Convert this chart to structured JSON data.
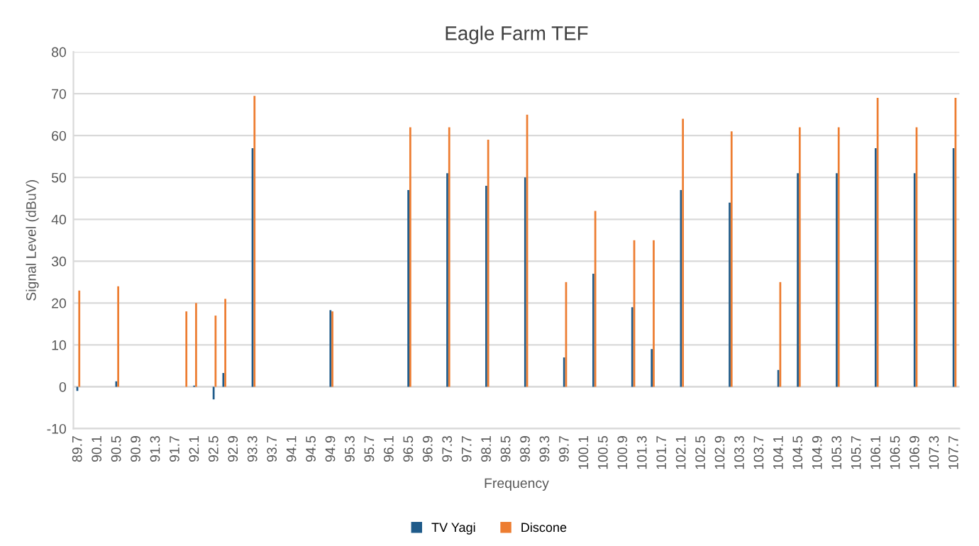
{
  "chart_data": {
    "type": "bar",
    "title": "Eagle Farm TEF",
    "xlabel": "Frequency",
    "ylabel": "Signal Level (dBuV)",
    "categories": [
      "89.7",
      null,
      null,
      null,
      "90.1",
      null,
      null,
      null,
      "90.5",
      null,
      null,
      null,
      "90.9",
      null,
      null,
      null,
      "91.3",
      null,
      null,
      null,
      "91.7",
      null,
      null,
      null,
      "92.1",
      null,
      null,
      null,
      "92.5",
      null,
      null,
      null,
      "92.9",
      null,
      null,
      null,
      "93.3",
      null,
      null,
      null,
      "93.7",
      null,
      null,
      null,
      "94.1",
      null,
      null,
      null,
      "94.5",
      null,
      null,
      null,
      "94.9",
      null,
      null,
      null,
      "95.3",
      null,
      null,
      null,
      "95.7",
      null,
      null,
      null,
      "96.1",
      null,
      null,
      null,
      "96.5",
      null,
      null,
      null,
      "96.9",
      null,
      null,
      null,
      "97.3",
      null,
      null,
      null,
      "97.7",
      null,
      null,
      null,
      "98.1",
      null,
      null,
      null,
      "98.5",
      null,
      null,
      null,
      "98.9",
      null,
      null,
      null,
      "99.3",
      null,
      null,
      null,
      "99.7",
      null,
      null,
      null,
      "100.1",
      null,
      null,
      null,
      "100.5",
      null,
      null,
      null,
      "100.9",
      null,
      null,
      null,
      "101.3",
      null,
      null,
      null,
      "101.7",
      null,
      null,
      null,
      "102.1",
      null,
      null,
      null,
      "102.5",
      null,
      null,
      null,
      "102.9",
      null,
      null,
      null,
      "103.3",
      null,
      null,
      null,
      "103.7",
      null,
      null,
      null,
      "104.1",
      null,
      null,
      null,
      "104.5",
      null,
      null,
      null,
      "104.9",
      null,
      null,
      null,
      "105.3",
      null,
      null,
      null,
      "105.7",
      null,
      null,
      null,
      "106.1",
      null,
      null,
      null,
      "106.5",
      null,
      null,
      null,
      "106.9",
      null,
      null,
      null,
      "107.3",
      null,
      null,
      null,
      "107.7"
    ],
    "series": [
      {
        "name": "TV Yagi",
        "color": "#1f5b8a",
        "values": [
          -1,
          null,
          null,
          null,
          null,
          null,
          null,
          null,
          1.3,
          null,
          null,
          null,
          null,
          null,
          null,
          null,
          null,
          null,
          null,
          null,
          null,
          null,
          null,
          null,
          0.3,
          null,
          null,
          null,
          -3,
          null,
          3.3,
          null,
          null,
          null,
          null,
          null,
          57,
          null,
          null,
          null,
          null,
          null,
          null,
          null,
          null,
          null,
          null,
          null,
          null,
          null,
          null,
          null,
          18.3,
          null,
          null,
          null,
          null,
          null,
          null,
          null,
          null,
          null,
          null,
          null,
          null,
          null,
          null,
          null,
          47,
          null,
          null,
          null,
          null,
          null,
          null,
          null,
          51,
          null,
          null,
          null,
          null,
          null,
          null,
          null,
          48,
          null,
          null,
          null,
          null,
          null,
          null,
          null,
          50,
          null,
          null,
          null,
          null,
          null,
          null,
          null,
          7,
          null,
          null,
          null,
          null,
          null,
          27,
          null,
          null,
          null,
          null,
          null,
          null,
          null,
          19,
          null,
          null,
          null,
          9,
          null,
          null,
          null,
          null,
          null,
          47,
          null,
          null,
          null,
          null,
          null,
          null,
          null,
          null,
          null,
          44,
          null,
          null,
          null,
          null,
          null,
          null,
          null,
          null,
          null,
          4,
          null,
          null,
          null,
          51,
          null,
          null,
          null,
          null,
          null,
          null,
          null,
          51,
          null,
          null,
          null,
          null,
          null,
          null,
          null,
          57,
          null,
          null,
          null,
          null,
          null,
          null,
          null,
          51,
          null,
          null,
          null,
          null,
          null,
          null,
          null,
          57
        ]
      },
      {
        "name": "Discone",
        "color": "#ed7d31",
        "values": [
          23,
          null,
          null,
          null,
          null,
          null,
          null,
          null,
          24,
          null,
          null,
          null,
          null,
          null,
          null,
          null,
          null,
          null,
          null,
          null,
          null,
          null,
          18,
          null,
          20,
          null,
          null,
          null,
          17,
          null,
          21,
          null,
          null,
          null,
          null,
          null,
          69.5,
          null,
          null,
          null,
          null,
          null,
          null,
          null,
          null,
          null,
          null,
          null,
          null,
          null,
          null,
          null,
          18,
          null,
          null,
          null,
          null,
          null,
          null,
          null,
          null,
          null,
          null,
          null,
          null,
          null,
          null,
          null,
          62,
          null,
          null,
          null,
          null,
          null,
          null,
          null,
          62,
          null,
          null,
          null,
          null,
          null,
          null,
          null,
          59,
          null,
          null,
          null,
          null,
          null,
          null,
          null,
          65,
          null,
          null,
          null,
          null,
          null,
          null,
          null,
          25,
          null,
          null,
          null,
          null,
          null,
          42,
          null,
          null,
          null,
          null,
          null,
          null,
          null,
          35,
          null,
          null,
          null,
          35,
          null,
          null,
          null,
          null,
          null,
          64,
          null,
          null,
          null,
          null,
          null,
          null,
          null,
          null,
          null,
          61,
          null,
          null,
          null,
          null,
          null,
          null,
          null,
          null,
          null,
          25,
          null,
          null,
          null,
          62,
          null,
          null,
          null,
          null,
          null,
          null,
          null,
          62,
          null,
          null,
          null,
          null,
          null,
          null,
          null,
          69,
          null,
          null,
          null,
          null,
          null,
          null,
          null,
          62,
          null,
          null,
          null,
          null,
          null,
          null,
          null,
          69
        ]
      }
    ],
    "ylim": [
      -10,
      80
    ],
    "yticks": [
      -10,
      0,
      10,
      20,
      30,
      40,
      50,
      60,
      70,
      80
    ],
    "grid": "y",
    "legend": "bottom"
  }
}
